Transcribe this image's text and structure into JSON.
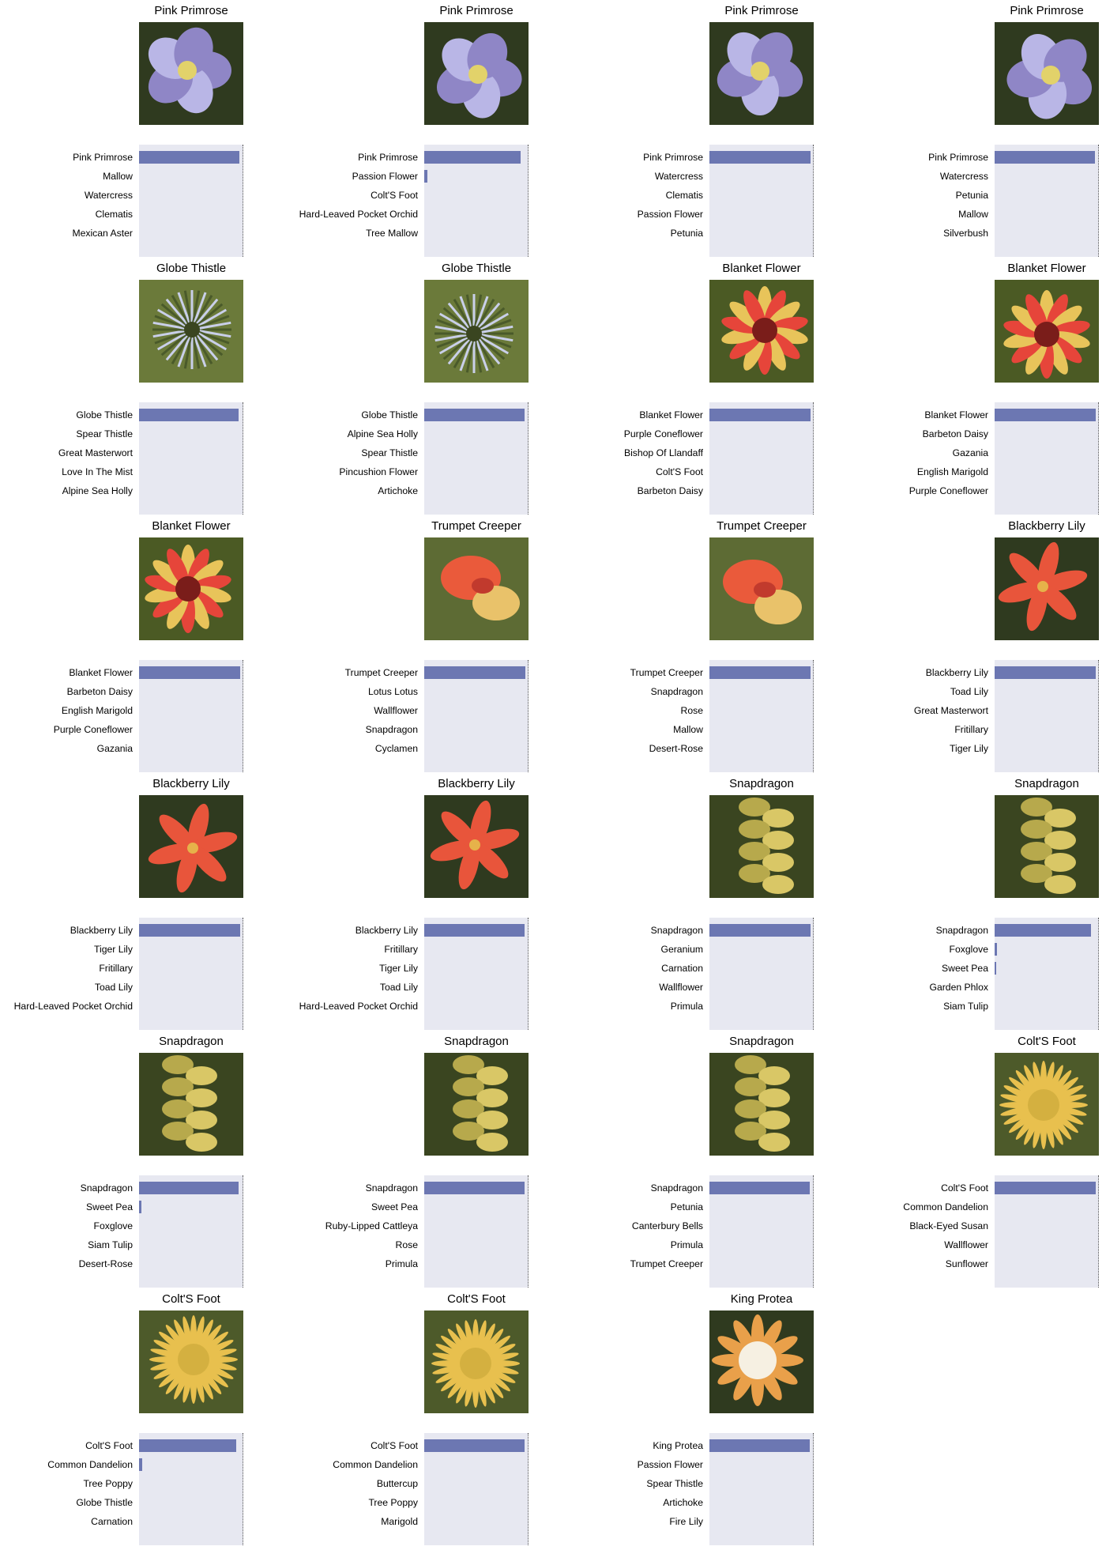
{
  "chart_data": [
    {
      "type": "bar",
      "title": "Pink Primrose",
      "categories": [
        "Pink Primrose",
        "Mallow",
        "Watercress",
        "Clematis",
        "Mexican Aster"
      ],
      "values": [
        0.97,
        0.0,
        0.0,
        0.0,
        0.0
      ],
      "xlim": [
        0,
        1
      ],
      "image": "pink-primrose-photo"
    },
    {
      "type": "bar",
      "title": "Pink Primrose",
      "categories": [
        "Pink Primrose",
        "Passion Flower",
        "Colt'S Foot",
        "Hard-Leaved Pocket Orchid",
        "Tree Mallow"
      ],
      "values": [
        0.93,
        0.03,
        0.0,
        0.0,
        0.0
      ],
      "xlim": [
        0,
        1
      ],
      "image": "pink-primrose-photo"
    },
    {
      "type": "bar",
      "title": "Pink Primrose",
      "categories": [
        "Pink Primrose",
        "Watercress",
        "Clematis",
        "Passion Flower",
        "Petunia"
      ],
      "values": [
        0.98,
        0.0,
        0.0,
        0.0,
        0.0
      ],
      "xlim": [
        0,
        1
      ],
      "image": "pink-primrose-photo"
    },
    {
      "type": "bar",
      "title": "Pink Primrose",
      "categories": [
        "Pink Primrose",
        "Watercress",
        "Petunia",
        "Mallow",
        "Silverbush"
      ],
      "values": [
        0.97,
        0.0,
        0.0,
        0.0,
        0.0
      ],
      "xlim": [
        0,
        1
      ],
      "image": "pink-primrose-photo"
    },
    {
      "type": "bar",
      "title": "Globe Thistle",
      "categories": [
        "Globe Thistle",
        "Spear Thistle",
        "Great Masterwort",
        "Love In The Mist",
        "Alpine Sea Holly"
      ],
      "values": [
        0.96,
        0.0,
        0.0,
        0.0,
        0.0
      ],
      "xlim": [
        0,
        1
      ],
      "image": "globe-thistle-photo"
    },
    {
      "type": "bar",
      "title": "Globe Thistle",
      "categories": [
        "Globe Thistle",
        "Alpine Sea Holly",
        "Spear Thistle",
        "Pincushion Flower",
        "Artichoke"
      ],
      "values": [
        0.97,
        0.0,
        0.0,
        0.0,
        0.0
      ],
      "xlim": [
        0,
        1
      ],
      "image": "globe-thistle-photo"
    },
    {
      "type": "bar",
      "title": "Blanket Flower",
      "categories": [
        "Blanket Flower",
        "Purple Coneflower",
        "Bishop Of Llandaff",
        "Colt'S Foot",
        "Barbeton Daisy"
      ],
      "values": [
        0.98,
        0.0,
        0.0,
        0.0,
        0.0
      ],
      "xlim": [
        0,
        1
      ],
      "image": "blanket-flower-photo"
    },
    {
      "type": "bar",
      "title": "Blanket Flower",
      "categories": [
        "Blanket Flower",
        "Barbeton Daisy",
        "Gazania",
        "English Marigold",
        "Purple Coneflower"
      ],
      "values": [
        0.98,
        0.0,
        0.0,
        0.0,
        0.0
      ],
      "xlim": [
        0,
        1
      ],
      "image": "blanket-flower-photo"
    },
    {
      "type": "bar",
      "title": "Blanket Flower",
      "categories": [
        "Blanket Flower",
        "Barbeton Daisy",
        "English Marigold",
        "Purple Coneflower",
        "Gazania"
      ],
      "values": [
        0.98,
        0.0,
        0.0,
        0.0,
        0.0
      ],
      "xlim": [
        0,
        1
      ],
      "image": "blanket-flower-photo"
    },
    {
      "type": "bar",
      "title": "Trumpet Creeper",
      "categories": [
        "Trumpet Creeper",
        "Lotus Lotus",
        "Wallflower",
        "Snapdragon",
        "Cyclamen"
      ],
      "values": [
        0.98,
        0.0,
        0.0,
        0.0,
        0.0
      ],
      "xlim": [
        0,
        1
      ],
      "image": "trumpet-creeper-photo"
    },
    {
      "type": "bar",
      "title": "Trumpet Creeper",
      "categories": [
        "Trumpet Creeper",
        "Snapdragon",
        "Rose",
        "Mallow",
        "Desert-Rose"
      ],
      "values": [
        0.98,
        0.0,
        0.0,
        0.0,
        0.0
      ],
      "xlim": [
        0,
        1
      ],
      "image": "trumpet-creeper-photo"
    },
    {
      "type": "bar",
      "title": "Blackberry Lily",
      "categories": [
        "Blackberry Lily",
        "Toad Lily",
        "Great Masterwort",
        "Fritillary",
        "Tiger Lily"
      ],
      "values": [
        0.98,
        0.0,
        0.0,
        0.0,
        0.0
      ],
      "xlim": [
        0,
        1
      ],
      "image": "blackberry-lily-photo"
    },
    {
      "type": "bar",
      "title": "Blackberry Lily",
      "categories": [
        "Blackberry Lily",
        "Tiger Lily",
        "Fritillary",
        "Toad Lily",
        "Hard-Leaved Pocket Orchid"
      ],
      "values": [
        0.98,
        0.0,
        0.0,
        0.0,
        0.0
      ],
      "xlim": [
        0,
        1
      ],
      "image": "blackberry-lily-photo"
    },
    {
      "type": "bar",
      "title": "Blackberry Lily",
      "categories": [
        "Blackberry Lily",
        "Fritillary",
        "Tiger Lily",
        "Toad Lily",
        "Hard-Leaved Pocket Orchid"
      ],
      "values": [
        0.97,
        0.0,
        0.0,
        0.0,
        0.0
      ],
      "xlim": [
        0,
        1
      ],
      "image": "blackberry-lily-photo"
    },
    {
      "type": "bar",
      "title": "Snapdragon",
      "categories": [
        "Snapdragon",
        "Geranium",
        "Carnation",
        "Wallflower",
        "Primula"
      ],
      "values": [
        0.98,
        0.0,
        0.0,
        0.0,
        0.0
      ],
      "xlim": [
        0,
        1
      ],
      "image": "snapdragon-photo"
    },
    {
      "type": "bar",
      "title": "Snapdragon",
      "categories": [
        "Snapdragon",
        "Foxglove",
        "Sweet Pea",
        "Garden Phlox",
        "Siam Tulip"
      ],
      "values": [
        0.93,
        0.02,
        0.01,
        0.0,
        0.0
      ],
      "xlim": [
        0,
        1
      ],
      "image": "snapdragon-photo"
    },
    {
      "type": "bar",
      "title": "Snapdragon",
      "categories": [
        "Snapdragon",
        "Sweet Pea",
        "Foxglove",
        "Siam Tulip",
        "Desert-Rose"
      ],
      "values": [
        0.96,
        0.02,
        0.0,
        0.0,
        0.0
      ],
      "xlim": [
        0,
        1
      ],
      "image": "snapdragon-photo"
    },
    {
      "type": "bar",
      "title": "Snapdragon",
      "categories": [
        "Snapdragon",
        "Sweet Pea",
        "Ruby-Lipped Cattleya",
        "Rose",
        "Primula"
      ],
      "values": [
        0.97,
        0.0,
        0.0,
        0.0,
        0.0
      ],
      "xlim": [
        0,
        1
      ],
      "image": "snapdragon-photo"
    },
    {
      "type": "bar",
      "title": "Snapdragon",
      "categories": [
        "Snapdragon",
        "Petunia",
        "Canterbury Bells",
        "Primula",
        "Trumpet Creeper"
      ],
      "values": [
        0.97,
        0.0,
        0.0,
        0.0,
        0.0
      ],
      "xlim": [
        0,
        1
      ],
      "image": "snapdragon-photo"
    },
    {
      "type": "bar",
      "title": "Colt'S Foot",
      "categories": [
        "Colt'S Foot",
        "Common Dandelion",
        "Black-Eyed Susan",
        "Wallflower",
        "Sunflower"
      ],
      "values": [
        0.98,
        0.0,
        0.0,
        0.0,
        0.0
      ],
      "xlim": [
        0,
        1
      ],
      "image": "colts-foot-photo"
    },
    {
      "type": "bar",
      "title": "Colt'S Foot",
      "categories": [
        "Colt'S Foot",
        "Common Dandelion",
        "Tree Poppy",
        "Globe Thistle",
        "Carnation"
      ],
      "values": [
        0.94,
        0.03,
        0.0,
        0.0,
        0.0
      ],
      "xlim": [
        0,
        1
      ],
      "image": "colts-foot-photo"
    },
    {
      "type": "bar",
      "title": "Colt'S Foot",
      "categories": [
        "Colt'S Foot",
        "Common Dandelion",
        "Buttercup",
        "Tree Poppy",
        "Marigold"
      ],
      "values": [
        0.97,
        0.0,
        0.0,
        0.0,
        0.0
      ],
      "xlim": [
        0,
        1
      ],
      "image": "colts-foot-photo"
    },
    {
      "type": "bar",
      "title": "King Protea",
      "categories": [
        "King Protea",
        "Passion Flower",
        "Spear Thistle",
        "Artichoke",
        "Fire Lily"
      ],
      "values": [
        0.97,
        0.0,
        0.0,
        0.0,
        0.0
      ],
      "xlim": [
        0,
        1
      ],
      "image": "king-protea-photo"
    }
  ],
  "colors": {
    "bar": "#6c77b2",
    "plot_background": "#e7e8f1"
  }
}
